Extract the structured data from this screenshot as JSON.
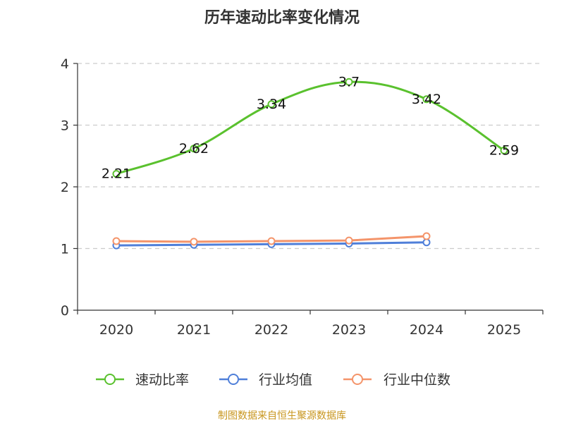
{
  "chart_data": {
    "type": "line",
    "title": "历年速动比率变化情况",
    "categories": [
      "2020",
      "2021",
      "2022",
      "2023",
      "2024",
      "2025"
    ],
    "ylim": [
      0,
      4
    ],
    "yticks": [
      "0",
      "1",
      "2",
      "3",
      "4"
    ],
    "grid": true,
    "legend_position": "bottom",
    "series": [
      {
        "name": "速动比率",
        "color": "#5ac12e",
        "values": [
          2.21,
          2.62,
          3.34,
          3.7,
          3.42,
          2.59
        ],
        "labels": [
          "2.21",
          "2.62",
          "3.34",
          "3.7",
          "3.42",
          "2.59"
        ]
      },
      {
        "name": "行业均值",
        "color": "#4f7fd9",
        "values": [
          1.05,
          1.06,
          1.07,
          1.08,
          1.1,
          null
        ]
      },
      {
        "name": "行业中位数",
        "color": "#f4946a",
        "values": [
          1.12,
          1.11,
          1.12,
          1.13,
          1.2,
          null
        ]
      }
    ],
    "source": "制图数据来自恒生聚源数据库"
  },
  "colors": {
    "axis": "#333333",
    "grid": "#cccccc",
    "source": "#c8961e"
  }
}
